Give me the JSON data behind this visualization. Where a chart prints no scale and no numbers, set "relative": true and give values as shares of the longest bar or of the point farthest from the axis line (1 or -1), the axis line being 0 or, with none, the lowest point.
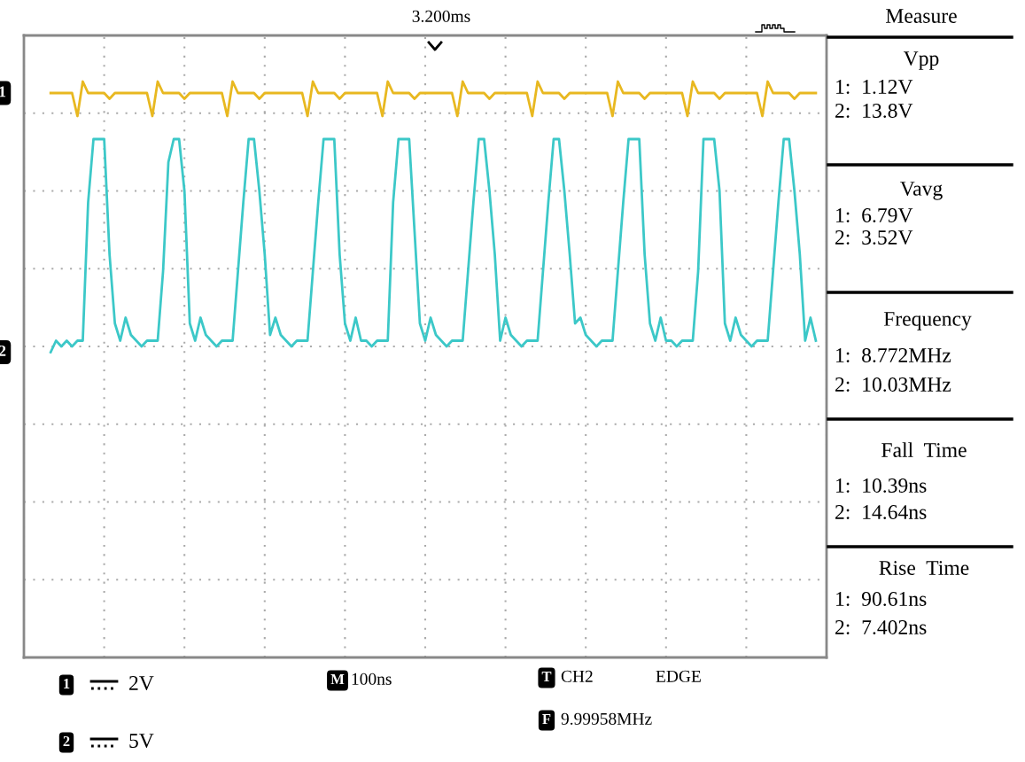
{
  "chart_data": {
    "type": "line",
    "relative": true,
    "grid": true,
    "tick_labels": false,
    "line_style": "solid",
    "categories": [
      null,
      null,
      null,
      null,
      null,
      null,
      null,
      null,
      null,
      null,
      null,
      null,
      null,
      null,
      null,
      null,
      null,
      null,
      null,
      null,
      null,
      null,
      null,
      null,
      null,
      null,
      null,
      null,
      null,
      null,
      null,
      null,
      null,
      null,
      null,
      null,
      null,
      null,
      null,
      null,
      null,
      null,
      null,
      null,
      null,
      null,
      null,
      null,
      null,
      null,
      null,
      null,
      null,
      null,
      null,
      null,
      null,
      null,
      null,
      null,
      null,
      null,
      null,
      null,
      null,
      null,
      null,
      null,
      null,
      null,
      null,
      null,
      null,
      null,
      null,
      null,
      null,
      null,
      null,
      null,
      null,
      null,
      null,
      null,
      null,
      null,
      null,
      null,
      null,
      null,
      null,
      null,
      null,
      null,
      null,
      null,
      null,
      null,
      null,
      null,
      null,
      null,
      null,
      null,
      null,
      null,
      null,
      null,
      null,
      null,
      null,
      null,
      null,
      null,
      null,
      null,
      null,
      null,
      null,
      null,
      null,
      null,
      null,
      null,
      null,
      null,
      null,
      null,
      null,
      null,
      null,
      null,
      null,
      null,
      null,
      null,
      null,
      null,
      null,
      null,
      null,
      null,
      null,
      null,
      null,
      null,
      null,
      null,
      null,
      null,
      null
    ],
    "series": [
      {
        "name": "1",
        "color": "#e8b820",
        "values": [
          null,
          null,
          null,
          null,
          null,
          0.98,
          0.98,
          0.98,
          0.98,
          0.98,
          0.94,
          1.0,
          0.98,
          0.98,
          0.98,
          0.98,
          0.97,
          0.98,
          0.98,
          0.98,
          0.98,
          0.98,
          0.98,
          0.98,
          0.94,
          1.0,
          0.98,
          0.98,
          0.98,
          0.98,
          0.97,
          0.98,
          0.98,
          0.98,
          0.98,
          0.98,
          0.98,
          0.98,
          0.94,
          1.0,
          0.98,
          0.98,
          0.98,
          0.98,
          0.97,
          0.98,
          0.98,
          0.98,
          0.98,
          0.98,
          0.98,
          0.98,
          0.98,
          0.94,
          1.0,
          0.98,
          0.98,
          0.98,
          0.98,
          0.97,
          0.98,
          0.98,
          0.98,
          0.98,
          0.98,
          0.98,
          0.98,
          0.94,
          1.0,
          0.98,
          0.98,
          0.98,
          0.98,
          0.97,
          0.98,
          0.98,
          0.98,
          0.98,
          0.98,
          0.98,
          0.98,
          0.94,
          1.0,
          0.98,
          0.98,
          0.98,
          0.98,
          0.97,
          0.98,
          0.98,
          0.98,
          0.98,
          0.98,
          0.98,
          0.98,
          0.94,
          1.0,
          0.98,
          0.98,
          0.98,
          0.98,
          0.97,
          0.98,
          0.98,
          0.98,
          0.98,
          0.98,
          0.98,
          0.98,
          0.98,
          0.94,
          1.0,
          0.98,
          0.98,
          0.98,
          0.98,
          0.97,
          0.98,
          0.98,
          0.98,
          0.98,
          0.98,
          0.98,
          0.98,
          0.94,
          1.0,
          0.98,
          0.98,
          0.98,
          0.98,
          0.97,
          0.98,
          0.98,
          0.98,
          0.98,
          0.98,
          0.98,
          0.98,
          0.94,
          1.0,
          0.98,
          0.98,
          0.98,
          0.98,
          0.97,
          0.98,
          0.98,
          0.98,
          0.98,
          null,
          null
        ]
      },
      {
        "name": "2",
        "color": "#3cc8c8",
        "values": [
          null,
          null,
          null,
          null,
          null,
          0.53,
          0.55,
          0.54,
          0.55,
          0.54,
          0.55,
          0.55,
          0.79,
          0.9,
          0.9,
          0.9,
          0.7,
          0.58,
          0.55,
          0.59,
          0.56,
          0.55,
          0.54,
          0.55,
          0.55,
          0.55,
          0.67,
          0.86,
          0.9,
          0.9,
          0.81,
          0.58,
          0.55,
          0.59,
          0.56,
          0.55,
          0.54,
          0.55,
          0.55,
          0.55,
          0.67,
          0.79,
          0.9,
          0.9,
          0.81,
          0.7,
          0.56,
          0.59,
          0.56,
          0.55,
          0.54,
          0.55,
          0.55,
          0.55,
          0.67,
          0.79,
          0.9,
          0.9,
          0.9,
          0.7,
          0.58,
          0.55,
          0.59,
          0.55,
          0.55,
          0.54,
          0.55,
          0.55,
          0.55,
          0.79,
          0.9,
          0.9,
          0.9,
          0.74,
          0.58,
          0.55,
          0.59,
          0.56,
          0.55,
          0.54,
          0.55,
          0.55,
          0.55,
          0.67,
          0.79,
          0.9,
          0.9,
          0.81,
          0.7,
          0.55,
          0.59,
          0.56,
          0.55,
          0.54,
          0.55,
          0.55,
          0.55,
          0.67,
          0.79,
          0.9,
          0.9,
          0.81,
          0.7,
          0.58,
          0.59,
          0.56,
          0.55,
          0.54,
          0.55,
          0.55,
          0.55,
          0.67,
          0.79,
          0.9,
          0.9,
          0.9,
          0.7,
          0.58,
          0.55,
          0.59,
          0.55,
          0.55,
          0.54,
          0.55,
          0.55,
          0.55,
          0.67,
          0.9,
          0.9,
          0.9,
          0.81,
          0.58,
          0.55,
          0.59,
          0.56,
          0.55,
          0.54,
          0.55,
          0.55,
          0.55,
          0.67,
          0.79,
          0.9,
          0.9,
          0.81,
          0.7,
          0.55,
          0.59,
          0.55,
          null,
          null
        ]
      }
    ],
    "annotations": [
      "3.200ms",
      "Measure",
      "Vpp",
      "1:  1.12V",
      "2:  13.8V",
      "Vavg",
      "1:  6.79V",
      "2:  3.52V",
      "Frequency",
      "1:  8.772MHz",
      "2:  10.03MHz",
      "Fall  Time",
      "1:  10.39ns",
      "2:  14.64ns",
      "Rise  Time",
      "1:  90.61ns",
      "2:  7.402ns",
      "1",
      "2V",
      "2",
      "5V",
      "M",
      "100ns",
      "T",
      "CH2",
      "EDGE",
      "F",
      "9.99958MHz"
    ]
  }
}
